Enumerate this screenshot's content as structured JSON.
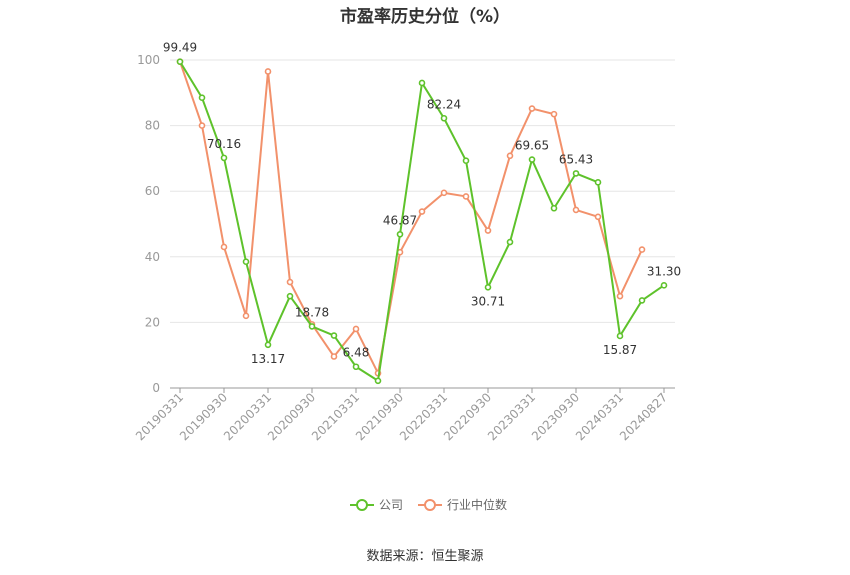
{
  "title": "市盈率历史分位（%）",
  "source": "数据来源：恒生聚源",
  "colors": {
    "company": "#5ec22b",
    "industry": "#f2916b",
    "grid": "#e6e6e6",
    "axis": "#999999",
    "label": "#333333"
  },
  "chart_data": {
    "type": "line",
    "title": "市盈率历史分位（%）",
    "ylim": [
      0,
      100
    ],
    "yticks": [
      0,
      20,
      40,
      60,
      80,
      100
    ],
    "grid": true,
    "legend_position": "bottom",
    "x": [
      "20190331",
      "20190630",
      "20190930",
      "20191231",
      "20200331",
      "20200630",
      "20200930",
      "20201231",
      "20210331",
      "20210630",
      "20210930",
      "20211231",
      "20220331",
      "20220630",
      "20220930",
      "20221231",
      "20230331",
      "20230630",
      "20230930",
      "20231231",
      "20240331",
      "20240630",
      "20240827"
    ],
    "x_tick_labels": [
      "20190331",
      "20190930",
      "20200331",
      "20200930",
      "20210331",
      "20210930",
      "20220331",
      "20220930",
      "20230331",
      "20230930",
      "20240331",
      "20240827"
    ],
    "series": [
      {
        "name": "公司",
        "values": [
          99.49,
          88.5,
          70.16,
          38.5,
          13.17,
          28.0,
          18.78,
          16.0,
          6.48,
          2.2,
          46.87,
          93.0,
          82.24,
          69.3,
          30.71,
          44.5,
          69.65,
          54.8,
          65.43,
          62.7,
          15.87,
          26.7,
          31.3
        ],
        "labels": [
          "99.49",
          null,
          "70.16",
          null,
          "13.17",
          null,
          "18.78",
          null,
          "6.48",
          null,
          "46.87",
          null,
          "82.24",
          null,
          "30.71",
          null,
          "69.65",
          null,
          "65.43",
          null,
          "15.87",
          null,
          "31.30"
        ]
      },
      {
        "name": "行业中位数",
        "values": [
          99.5,
          80.0,
          43.0,
          22.0,
          96.5,
          32.3,
          19.4,
          9.6,
          18.0,
          4.5,
          41.4,
          53.8,
          59.5,
          58.4,
          48.0,
          70.8,
          85.2,
          83.5,
          54.3,
          52.2,
          28.0,
          42.2,
          null
        ]
      }
    ]
  }
}
